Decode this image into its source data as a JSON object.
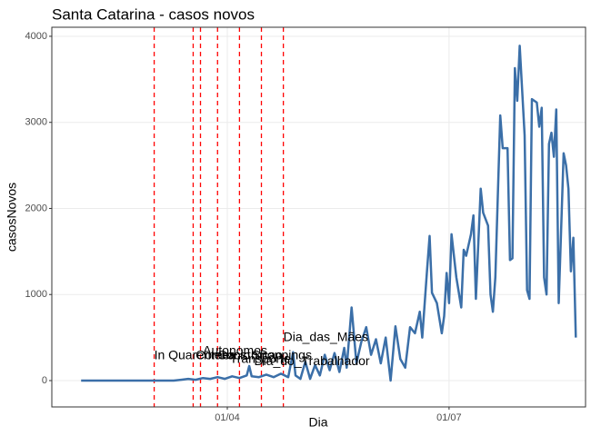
{
  "chart_data": {
    "type": "line",
    "title": "Santa Catarina - casos novos",
    "xlabel": "Dia",
    "ylabel": "casosNovos",
    "x": [
      "01/02",
      "01/03",
      "10/03",
      "13/03",
      "16/03",
      "19/03",
      "22/03",
      "25/03",
      "28/03",
      "31/03",
      "03/04",
      "06/04",
      "09/04",
      "10/04",
      "11/04",
      "14/04",
      "17/04",
      "20/04",
      "23/04",
      "26/04",
      "28/04",
      "29/04",
      "01/05",
      "03/05",
      "05/05",
      "07/05",
      "09/05",
      "11/05",
      "13/05",
      "15/05",
      "17/05",
      "19/05",
      "20/05",
      "22/05",
      "24/05",
      "26/05",
      "28/05",
      "30/05",
      "01/06",
      "03/06",
      "05/06",
      "07/06",
      "09/06",
      "11/06",
      "13/06",
      "15/06",
      "17/06",
      "19/06",
      "20/06",
      "22/06",
      "23/06",
      "24/06",
      "26/06",
      "28/06",
      "29/06",
      "30/06",
      "01/07",
      "02/07",
      "04/07",
      "06/07",
      "07/07",
      "08/07",
      "10/07",
      "11/07",
      "12/07",
      "14/07",
      "15/07",
      "17/07",
      "18/07",
      "19/07",
      "20/07",
      "22/07",
      "23/07",
      "25/07",
      "26/07",
      "27/07",
      "28/07",
      "29/07",
      "30/07",
      "01/08",
      "02/08",
      "03/08",
      "04/08",
      "06/08",
      "07/08",
      "08/08",
      "09/08",
      "10/08",
      "11/08",
      "12/08",
      "13/08",
      "14/08",
      "15/08",
      "17/08",
      "18/08",
      "19/08",
      "20/08",
      "21/08",
      "22/08"
    ],
    "series": [
      {
        "name": "casosNovos",
        "color": "#3b6fa8",
        "values": [
          0,
          0,
          0,
          10,
          20,
          10,
          30,
          20,
          40,
          20,
          50,
          30,
          60,
          170,
          50,
          40,
          70,
          40,
          80,
          40,
          330,
          60,
          20,
          220,
          20,
          180,
          60,
          300,
          120,
          320,
          100,
          380,
          150,
          850,
          200,
          450,
          620,
          300,
          480,
          200,
          500,
          0,
          630,
          250,
          150,
          620,
          550,
          800,
          500,
          1300,
          1680,
          1020,
          900,
          550,
          750,
          1250,
          900,
          1700,
          1200,
          850,
          1520,
          1450,
          1700,
          1920,
          950,
          2230,
          1950,
          1800,
          1000,
          800,
          1200,
          3080,
          2700,
          2700,
          1400,
          1420,
          3630,
          3250,
          3890,
          2850,
          1050,
          950,
          3270,
          3230,
          2950,
          3170,
          1200,
          1000,
          2750,
          2880,
          2600,
          3150,
          900,
          2640,
          2500,
          2230,
          1270,
          1660,
          500
        ]
      }
    ],
    "xlim": [
      "20/01",
      "26/08"
    ],
    "xticks": [
      "01/04",
      "01/07"
    ],
    "ylim": [
      -306,
      4105
    ],
    "yticks": [
      0,
      1000,
      2000,
      3000,
      4000
    ],
    "grid": true,
    "vlines": {
      "color": "#ff0000",
      "x": [
        "02/03",
        "18/03",
        "21/03",
        "28/03",
        "06/04",
        "15/04",
        "24/04"
      ]
    },
    "annotations": [
      {
        "x": "02/03",
        "y": 285,
        "label": "In Quarentena"
      },
      {
        "x": "19/03",
        "y": 285,
        "label": "Comercio"
      },
      {
        "x": "22/03",
        "y": 338,
        "label": "Autonomos"
      },
      {
        "x": "28/03",
        "y": 285,
        "label": "Construcao"
      },
      {
        "x": "11/04",
        "y": 285,
        "label": "Shoppings"
      },
      {
        "x": "02/04",
        "y": 243,
        "label": "Transporte"
      },
      {
        "x": "12/04",
        "y": 220,
        "label": "Dia_do_Trabalhador"
      },
      {
        "x": "24/04",
        "y": 496,
        "label": "Dia_das_Mães"
      }
    ]
  }
}
